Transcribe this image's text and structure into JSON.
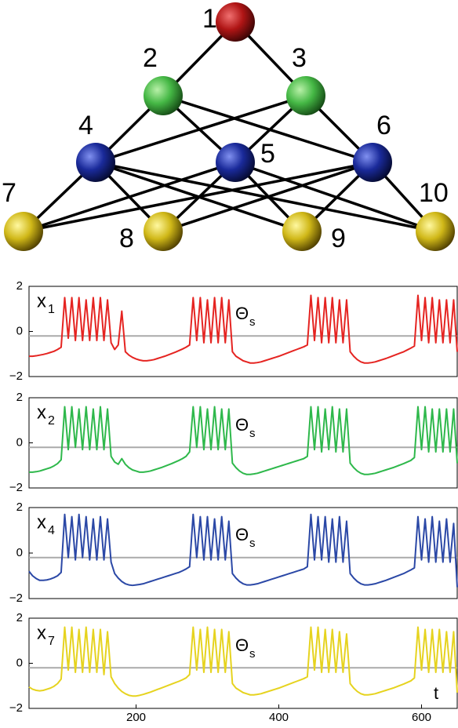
{
  "diagram": {
    "nodes": [
      {
        "label": "1"
      },
      {
        "label": "2"
      },
      {
        "label": "3"
      },
      {
        "label": "4"
      },
      {
        "label": "5"
      },
      {
        "label": "6"
      },
      {
        "label": "7"
      },
      {
        "label": "8"
      },
      {
        "label": "9"
      },
      {
        "label": "10"
      }
    ]
  },
  "chart_data": [
    {
      "type": "line",
      "label": "x",
      "label_sub": "1",
      "threshold_label": "Θ",
      "threshold_label_sub": "s",
      "threshold": -0.2,
      "color": "#e52421",
      "xlim": [
        50,
        650
      ],
      "ylim": [
        -2,
        2
      ],
      "yticks": [
        2,
        0,
        {
          "value": -2,
          "label": "−2"
        }
      ],
      "x": [
        50,
        55,
        60,
        65,
        70,
        75,
        80,
        85,
        90,
        95,
        100,
        105,
        110,
        115,
        120,
        125,
        130,
        135,
        140,
        145,
        150,
        155,
        160,
        165,
        170,
        175,
        180,
        185,
        190,
        195,
        200,
        205,
        210,
        215,
        220,
        225,
        230,
        235,
        240,
        245,
        250,
        255,
        260,
        265,
        270,
        275,
        280,
        285,
        290,
        295,
        300,
        305,
        310,
        315,
        320,
        325,
        330,
        335,
        340,
        345,
        350,
        355,
        360,
        365,
        370,
        375,
        380,
        385,
        390,
        395,
        400,
        405,
        410,
        415,
        420,
        425,
        430,
        435,
        440,
        445,
        450,
        455,
        460,
        465,
        470,
        475,
        480,
        485,
        490,
        495,
        500,
        505,
        510,
        515,
        520,
        525,
        530,
        535,
        540,
        545,
        550,
        555,
        560,
        565,
        570,
        575,
        580,
        585,
        590,
        595,
        600,
        605,
        610,
        615,
        620,
        625,
        630,
        635,
        640,
        645,
        650
      ],
      "values": [
        -1.1,
        -1.1,
        -1.08,
        -1.05,
        -1.02,
        -0.98,
        -0.93,
        -0.88,
        -0.8,
        -0.7,
        1.5,
        -0.3,
        1.5,
        -0.4,
        1.5,
        -0.4,
        1.4,
        -0.4,
        1.5,
        -0.4,
        1.5,
        -0.4,
        1.4,
        -0.5,
        -0.8,
        -0.6,
        0.9,
        -0.9,
        -1.05,
        -1.15,
        -1.22,
        -1.27,
        -1.3,
        -1.3,
        -1.28,
        -1.25,
        -1.2,
        -1.15,
        -1.1,
        -1.04,
        -0.98,
        -0.92,
        -0.85,
        -0.78,
        -0.7,
        -0.6,
        1.5,
        -0.4,
        1.5,
        -0.5,
        1.4,
        -0.5,
        1.5,
        -0.5,
        1.5,
        -0.5,
        1.4,
        -0.9,
        -1.1,
        -1.2,
        -1.3,
        -1.35,
        -1.4,
        -1.4,
        -1.38,
        -1.35,
        -1.3,
        -1.25,
        -1.2,
        -1.15,
        -1.1,
        -1.04,
        -0.98,
        -0.92,
        -0.86,
        -0.8,
        -0.74,
        -0.68,
        -0.6,
        1.6,
        -0.4,
        1.5,
        -0.5,
        1.5,
        -0.5,
        1.5,
        -0.5,
        1.4,
        -0.5,
        1.4,
        -0.9,
        -1.1,
        -1.25,
        -1.35,
        -1.4,
        -1.4,
        -1.38,
        -1.35,
        -1.3,
        -1.25,
        -1.2,
        -1.14,
        -1.08,
        -1.02,
        -0.96,
        -0.9,
        -0.82,
        -0.74,
        -0.65,
        1.6,
        -0.4,
        1.5,
        -0.5,
        1.5,
        -0.5,
        1.4,
        -0.5,
        1.4,
        -0.5,
        1.4,
        -0.9
      ]
    },
    {
      "type": "line",
      "label": "x",
      "label_sub": "2",
      "threshold_label": "Θ",
      "threshold_label_sub": "s",
      "threshold": -0.2,
      "color": "#2eb84b",
      "xlim": [
        50,
        650
      ],
      "ylim": [
        -2,
        2
      ],
      "yticks": [
        2,
        0,
        {
          "value": -2,
          "label": "−2"
        }
      ],
      "x": [
        50,
        55,
        60,
        65,
        70,
        75,
        80,
        85,
        90,
        95,
        100,
        105,
        110,
        115,
        120,
        125,
        130,
        135,
        140,
        145,
        150,
        155,
        160,
        165,
        170,
        175,
        180,
        185,
        190,
        195,
        200,
        205,
        210,
        215,
        220,
        225,
        230,
        235,
        240,
        245,
        250,
        255,
        260,
        265,
        270,
        275,
        280,
        285,
        290,
        295,
        300,
        305,
        310,
        315,
        320,
        325,
        330,
        335,
        340,
        345,
        350,
        355,
        360,
        365,
        370,
        375,
        380,
        385,
        390,
        395,
        400,
        405,
        410,
        415,
        420,
        425,
        430,
        435,
        440,
        445,
        450,
        455,
        460,
        465,
        470,
        475,
        480,
        485,
        490,
        495,
        500,
        505,
        510,
        515,
        520,
        525,
        530,
        535,
        540,
        545,
        550,
        555,
        560,
        565,
        570,
        575,
        580,
        585,
        590,
        595,
        600,
        605,
        610,
        615,
        620,
        625,
        630,
        635,
        640,
        645,
        650
      ],
      "values": [
        -1.3,
        -1.3,
        -1.28,
        -1.25,
        -1.2,
        -1.15,
        -1.1,
        -1.02,
        -0.92,
        -0.75,
        1.6,
        -0.3,
        1.6,
        -0.2,
        1.5,
        -0.3,
        1.6,
        -0.3,
        1.5,
        -0.3,
        1.6,
        -0.3,
        1.5,
        -0.6,
        -0.85,
        -0.95,
        -0.7,
        -0.95,
        -1.1,
        -1.2,
        -1.25,
        -1.3,
        -1.3,
        -1.28,
        -1.25,
        -1.2,
        -1.15,
        -1.1,
        -1.04,
        -0.98,
        -0.92,
        -0.85,
        -0.78,
        -0.7,
        -0.6,
        -0.4,
        1.6,
        -0.2,
        1.6,
        -0.3,
        1.5,
        -0.3,
        1.6,
        -0.3,
        1.5,
        -0.3,
        1.5,
        -0.9,
        -1.1,
        -1.25,
        -1.35,
        -1.4,
        -1.4,
        -1.38,
        -1.35,
        -1.3,
        -1.25,
        -1.2,
        -1.15,
        -1.1,
        -1.05,
        -1.0,
        -0.95,
        -0.9,
        -0.85,
        -0.8,
        -0.75,
        -0.7,
        -0.6,
        1.6,
        -0.3,
        1.6,
        -0.4,
        1.5,
        -0.3,
        1.6,
        -0.4,
        1.5,
        -0.4,
        1.5,
        -0.9,
        -1.1,
        -1.25,
        -1.35,
        -1.4,
        -1.4,
        -1.38,
        -1.35,
        -1.3,
        -1.25,
        -1.2,
        -1.15,
        -1.1,
        -1.04,
        -0.98,
        -0.92,
        -0.85,
        -0.78,
        -0.65,
        1.6,
        -0.3,
        1.6,
        -0.4,
        1.5,
        -0.4,
        1.5,
        -0.4,
        1.5,
        -0.4,
        1.5,
        -0.9
      ]
    },
    {
      "type": "line",
      "label": "x",
      "label_sub": "4",
      "threshold_label": "Θ",
      "threshold_label_sub": "s",
      "threshold": -0.2,
      "color": "#2b48a6",
      "xlim": [
        50,
        650
      ],
      "ylim": [
        -2,
        2
      ],
      "yticks": [
        2,
        0,
        {
          "value": -2,
          "label": "−2"
        }
      ],
      "x": [
        50,
        55,
        60,
        65,
        70,
        75,
        80,
        85,
        90,
        95,
        100,
        105,
        110,
        115,
        120,
        125,
        130,
        135,
        140,
        145,
        150,
        155,
        160,
        165,
        170,
        175,
        180,
        185,
        190,
        195,
        200,
        205,
        210,
        215,
        220,
        225,
        230,
        235,
        240,
        245,
        250,
        255,
        260,
        265,
        270,
        275,
        280,
        285,
        290,
        295,
        300,
        305,
        310,
        315,
        320,
        325,
        330,
        335,
        340,
        345,
        350,
        355,
        360,
        365,
        370,
        375,
        380,
        385,
        390,
        395,
        400,
        405,
        410,
        415,
        420,
        425,
        430,
        435,
        440,
        445,
        450,
        455,
        460,
        465,
        470,
        475,
        480,
        485,
        490,
        495,
        500,
        505,
        510,
        515,
        520,
        525,
        530,
        535,
        540,
        545,
        550,
        555,
        560,
        565,
        570,
        575,
        580,
        585,
        590,
        595,
        600,
        605,
        610,
        615,
        620,
        625,
        630,
        635,
        640,
        645,
        650
      ],
      "values": [
        -0.8,
        -1.0,
        -1.12,
        -1.2,
        -1.2,
        -1.18,
        -1.14,
        -1.08,
        -1.0,
        -0.85,
        1.7,
        -0.2,
        1.6,
        -0.3,
        1.7,
        -0.2,
        1.6,
        -0.3,
        1.5,
        -0.3,
        1.6,
        -0.3,
        1.5,
        -0.4,
        -0.9,
        -1.1,
        -1.25,
        -1.35,
        -1.4,
        -1.42,
        -1.4,
        -1.38,
        -1.35,
        -1.3,
        -1.25,
        -1.2,
        -1.15,
        -1.1,
        -1.05,
        -1.0,
        -0.95,
        -0.9,
        -0.85,
        -0.78,
        -0.7,
        -0.6,
        1.7,
        -0.2,
        1.6,
        -0.3,
        1.6,
        -0.3,
        1.5,
        -0.3,
        1.6,
        -0.3,
        1.4,
        -0.9,
        -1.1,
        -1.25,
        -1.35,
        -1.4,
        -1.4,
        -1.38,
        -1.35,
        -1.3,
        -1.25,
        -1.2,
        -1.15,
        -1.1,
        -1.05,
        -1.0,
        -0.95,
        -0.9,
        -0.85,
        -0.8,
        -0.75,
        -0.7,
        -0.6,
        1.7,
        -0.3,
        1.6,
        -0.3,
        1.6,
        -0.4,
        1.5,
        -0.4,
        1.6,
        -0.4,
        1.4,
        -0.9,
        -1.1,
        -1.25,
        -1.35,
        -1.4,
        -1.4,
        -1.38,
        -1.35,
        -1.3,
        -1.25,
        -1.2,
        -1.14,
        -1.08,
        -1.02,
        -0.96,
        -0.9,
        -0.82,
        -0.74,
        -0.65,
        1.6,
        -0.3,
        1.5,
        -0.4,
        1.6,
        -0.4,
        1.4,
        -0.4,
        1.5,
        -0.4,
        1.3,
        -1.5
      ]
    },
    {
      "type": "line",
      "label": "x",
      "label_sub": "7",
      "threshold_label": "Θ",
      "threshold_label_sub": "s",
      "threshold": -0.2,
      "color": "#e6d31f",
      "x_label": "t",
      "xlim": [
        50,
        650
      ],
      "ylim": [
        -2,
        2
      ],
      "yticks": [
        2,
        0,
        {
          "value": -2,
          "label": "−2"
        }
      ],
      "xticks": [
        200,
        400,
        600
      ],
      "x": [
        50,
        55,
        60,
        65,
        70,
        75,
        80,
        85,
        90,
        95,
        100,
        105,
        110,
        115,
        120,
        125,
        130,
        135,
        140,
        145,
        150,
        155,
        160,
        165,
        170,
        175,
        180,
        185,
        190,
        195,
        200,
        205,
        210,
        215,
        220,
        225,
        230,
        235,
        240,
        245,
        250,
        255,
        260,
        265,
        270,
        275,
        280,
        285,
        290,
        295,
        300,
        305,
        310,
        315,
        320,
        325,
        330,
        335,
        340,
        345,
        350,
        355,
        360,
        365,
        370,
        375,
        380,
        385,
        390,
        395,
        400,
        405,
        410,
        415,
        420,
        425,
        430,
        435,
        440,
        445,
        450,
        455,
        460,
        465,
        470,
        475,
        480,
        485,
        490,
        495,
        500,
        505,
        510,
        515,
        520,
        525,
        530,
        535,
        540,
        545,
        550,
        555,
        560,
        565,
        570,
        575,
        580,
        585,
        590,
        595,
        600,
        605,
        610,
        615,
        620,
        625,
        630,
        635,
        640,
        645,
        650
      ],
      "values": [
        -1.05,
        -1.15,
        -1.2,
        -1.22,
        -1.2,
        -1.15,
        -1.1,
        -1.02,
        -0.9,
        -0.7,
        1.6,
        -0.3,
        1.6,
        -0.4,
        1.5,
        -0.4,
        1.6,
        -0.4,
        1.5,
        -0.4,
        1.5,
        -0.5,
        1.4,
        -0.6,
        -0.9,
        -1.1,
        -1.25,
        -1.35,
        -1.42,
        -1.45,
        -1.45,
        -1.42,
        -1.38,
        -1.33,
        -1.28,
        -1.22,
        -1.16,
        -1.1,
        -1.04,
        -0.98,
        -0.92,
        -0.86,
        -0.8,
        -0.73,
        -0.65,
        -0.5,
        1.6,
        -0.3,
        1.5,
        -0.4,
        1.6,
        -0.4,
        1.5,
        -0.4,
        1.5,
        -0.4,
        1.4,
        -0.9,
        -1.1,
        -1.2,
        -1.3,
        -1.35,
        -1.4,
        -1.4,
        -1.38,
        -1.35,
        -1.3,
        -1.25,
        -1.2,
        -1.15,
        -1.1,
        -1.04,
        -0.98,
        -0.92,
        -0.86,
        -0.8,
        -0.74,
        -0.68,
        -0.6,
        1.6,
        -0.3,
        1.6,
        -0.4,
        1.5,
        -0.4,
        1.5,
        -0.4,
        1.4,
        -0.4,
        1.3,
        -0.9,
        -1.1,
        -1.25,
        -1.35,
        -1.4,
        -1.4,
        -1.38,
        -1.35,
        -1.3,
        -1.25,
        -1.2,
        -1.15,
        -1.1,
        -1.04,
        -0.98,
        -0.92,
        -0.85,
        -0.78,
        -0.65,
        1.6,
        -0.3,
        1.5,
        -0.4,
        1.5,
        -0.4,
        1.5,
        -0.4,
        1.4,
        -0.4,
        1.4,
        -1.3
      ]
    }
  ]
}
